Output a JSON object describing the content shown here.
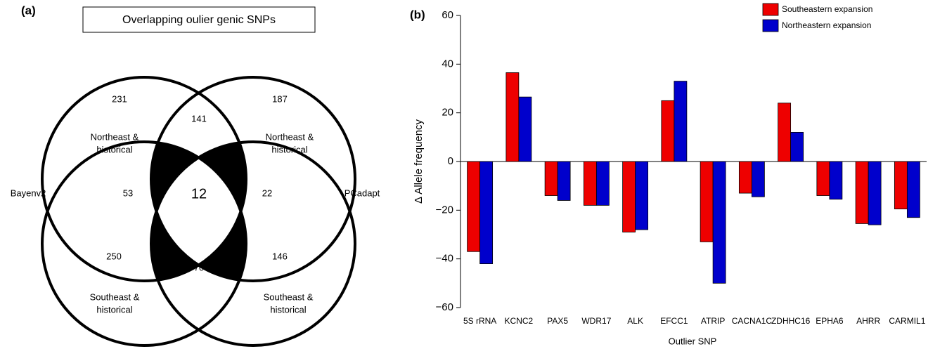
{
  "venn": {
    "panel": "(a)",
    "title": "Overlapping oulier genic SNPs",
    "left_label": "Bayenv2",
    "right_label": "PCadapt",
    "counts": [
      231,
      141,
      187,
      53,
      12,
      22,
      250,
      70,
      146
    ],
    "region_labels": [
      [
        "Northeast &",
        "historical"
      ],
      [
        "Northeast &",
        "historical"
      ],
      [
        "Southeast &",
        "historical"
      ],
      [
        "Southeast &",
        "historical"
      ]
    ]
  },
  "chart_data": {
    "type": "bar",
    "panel": "(b)",
    "x_label": "Outlier SNP",
    "y_label": "Δ Allele frequency",
    "categories": [
      "5S rRNA",
      "KCNC2",
      "PAX5",
      "WDR17",
      "ALK",
      "EFCC1",
      "ATRIP",
      "CACNA1C",
      "ZDHHC16",
      "EPHA6",
      "AHRR",
      "CARMIL1"
    ],
    "series": [
      {
        "name": "Southeastern expansion",
        "color": "#ee0000",
        "values": [
          -37,
          36.5,
          -14,
          -18,
          -29,
          25,
          -33,
          -13,
          24,
          -14,
          -25.5,
          -19.5
        ]
      },
      {
        "name": "Northeastern expansion",
        "color": "#0000cc",
        "values": [
          -42,
          26.5,
          -16,
          -18,
          -28,
          33,
          -50,
          -14.5,
          12,
          -15.5,
          -26,
          -23
        ]
      }
    ],
    "ylim": [
      -60,
      60
    ],
    "yticks": [
      {
        "value": -60,
        "label": "−60"
      },
      {
        "value": -40,
        "label": "−40"
      },
      {
        "value": -20,
        "label": "−20"
      },
      0,
      20,
      40,
      60
    ],
    "legend": "top-right"
  }
}
